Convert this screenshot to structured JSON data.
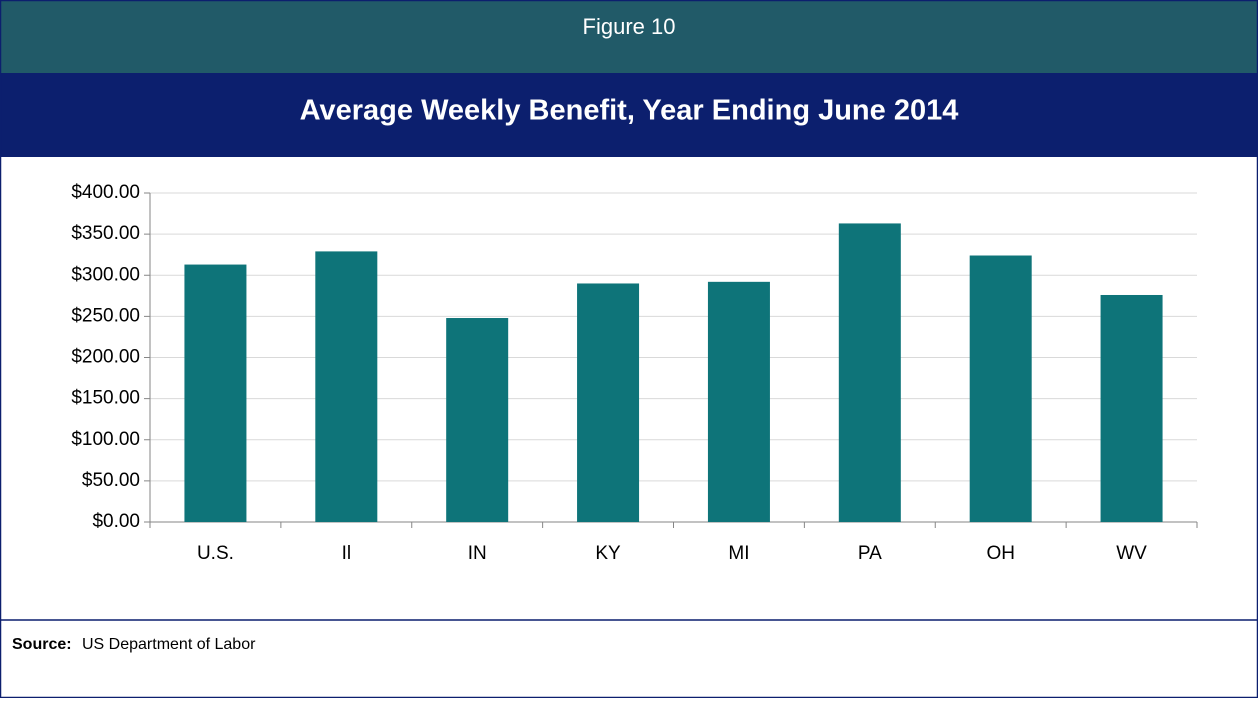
{
  "figure_label": "Figure 10",
  "chart_data": {
    "type": "bar",
    "title": "Average Weekly Benefit, Year Ending June 2014",
    "categories": [
      "U.S.",
      "Il",
      "IN",
      "KY",
      "MI",
      "PA",
      "OH",
      "WV"
    ],
    "values": [
      313,
      329,
      248,
      290,
      292,
      363,
      324,
      276
    ],
    "color": "#0e7479",
    "ylim": [
      0,
      400
    ],
    "yticks": [
      {
        "value": 0,
        "label": "$0.00"
      },
      {
        "value": 50,
        "label": "$50.00"
      },
      {
        "value": 100,
        "label": "$100.00"
      },
      {
        "value": 150,
        "label": "$150.00"
      },
      {
        "value": 200,
        "label": "$200.00"
      },
      {
        "value": 250,
        "label": "$250.00"
      },
      {
        "value": 300,
        "label": "$300.00"
      },
      {
        "value": 350,
        "label": "$350.00"
      },
      {
        "value": 400,
        "label": "$400.00"
      }
    ],
    "grid": true
  },
  "source": {
    "label": "Source:",
    "text": "US Department of Labor"
  }
}
